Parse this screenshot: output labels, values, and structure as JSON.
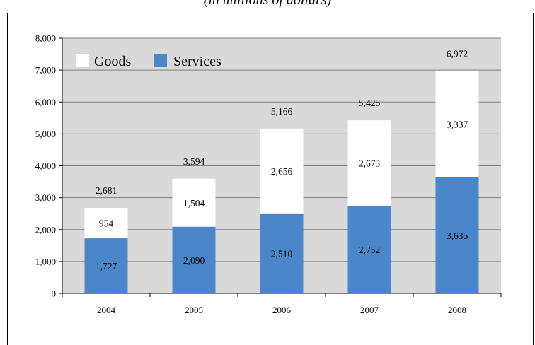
{
  "caption": "(in millions of dollars)",
  "chart_data": {
    "type": "bar",
    "stacked": true,
    "categories": [
      "2004",
      "2005",
      "2006",
      "2007",
      "2008"
    ],
    "series": [
      {
        "name": "Services",
        "values": [
          1727,
          2090,
          2510,
          2752,
          3635
        ],
        "labels": [
          "1,727",
          "2,090",
          "2,510",
          "2,752",
          "3,635"
        ]
      },
      {
        "name": "Goods",
        "values": [
          954,
          1504,
          2656,
          2673,
          3337
        ],
        "labels": [
          "954",
          "1,504",
          "2,656",
          "2,673",
          "3,337"
        ]
      }
    ],
    "totals": [
      2681,
      3594,
      5166,
      5425,
      6972
    ],
    "total_labels": [
      "2,681",
      "3,594",
      "5,166",
      "5,425",
      "6,972"
    ],
    "ylim": [
      0,
      8000
    ],
    "yticks": [
      0,
      1000,
      2000,
      3000,
      4000,
      5000,
      6000,
      7000,
      8000
    ],
    "ytick_labels": [
      "0",
      "1,000",
      "2,000",
      "3,000",
      "4,000",
      "5,000",
      "6,000",
      "7,000",
      "8,000"
    ],
    "grid": true,
    "legend_position": "top-left",
    "colors": {
      "Services": "#4a86c8",
      "Goods": "#ffffff",
      "plot_bg": "#d9d9d9"
    }
  }
}
